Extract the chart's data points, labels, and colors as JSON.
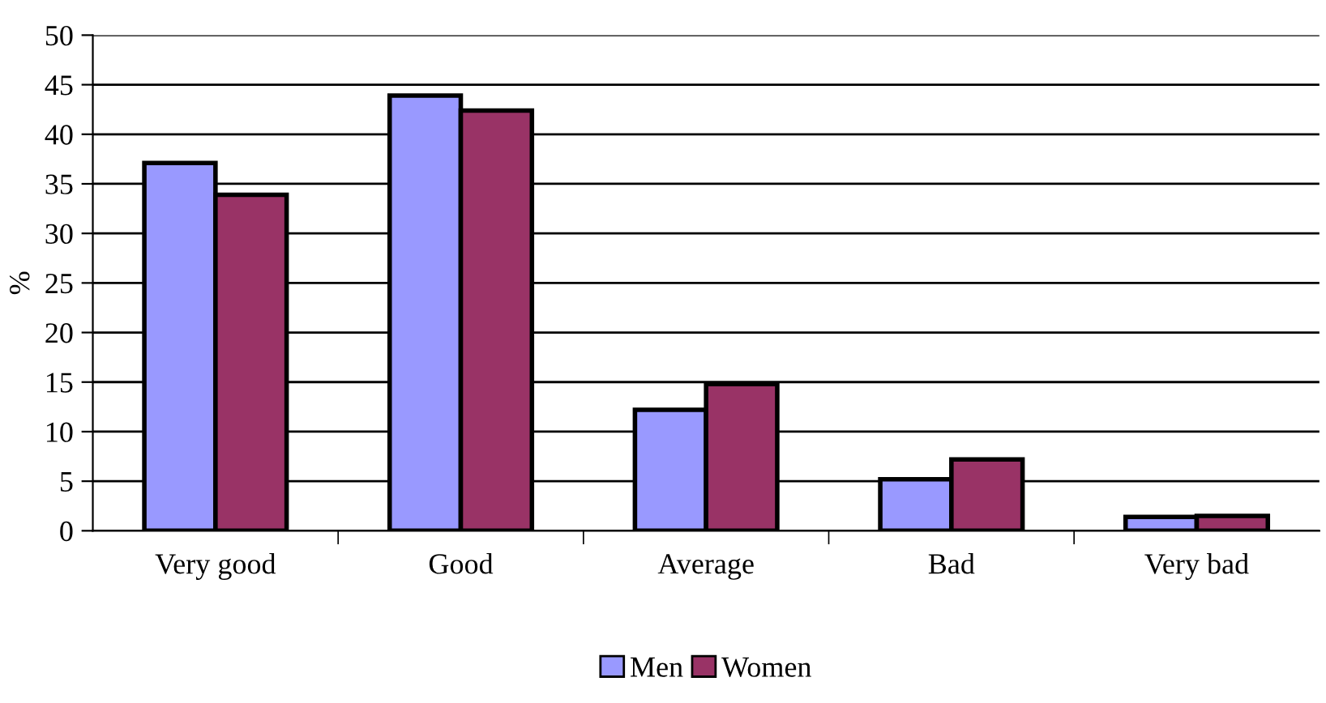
{
  "chart_data": {
    "type": "bar",
    "ylabel": "%",
    "categories": [
      "Very good",
      "Good",
      "Average",
      "Bad",
      "Very bad"
    ],
    "series": [
      {
        "name": "Men",
        "color": "#9999ff",
        "values": [
          37.1,
          43.9,
          12.2,
          5.2,
          1.4
        ]
      },
      {
        "name": "Women",
        "color": "#993366",
        "values": [
          33.9,
          42.4,
          14.8,
          7.2,
          1.5
        ]
      }
    ],
    "ylim": [
      0,
      50
    ],
    "yticks": [
      0,
      5,
      10,
      15,
      20,
      25,
      30,
      35,
      40,
      45,
      50
    ],
    "grid": "y",
    "legend": "bottom"
  }
}
